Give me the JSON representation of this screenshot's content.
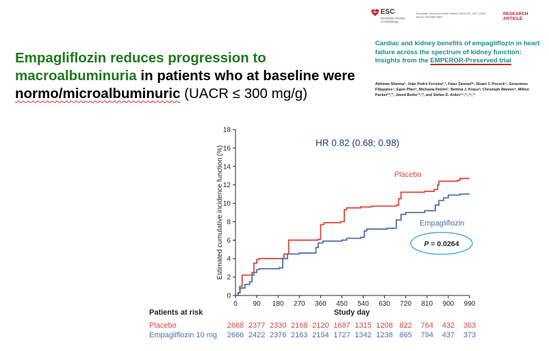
{
  "headline": {
    "part1": "Empagliflozin reduces progression to",
    "part2": "macroalbuminuria",
    "part3": " in patients who at baseline were",
    "part4": "normo/microalbuminuric",
    "part5": " (UACR ≤ 300 mg/g)"
  },
  "paper": {
    "logo_text": "ESC",
    "logo_sub": "European Society of Cardiology",
    "journal_line1": "European Journal of Heart Failure (2023) 25, 1337–1348",
    "journal_line2": "doi:10.1002/ejhf.2857",
    "label": "RESEARCH ARTICLE",
    "title_plain": "Cardiac and kidney benefits of empagliflozin in heart failure across the spectrum of kidney function: Insights from the ",
    "title_underlined": "EMPEROR-Preserved trial",
    "authors": "Abhinav Sharma¹, João Pedro Ferreira²,³, Faiez Zannad³ᵃ, Stuart J. Pocock⁴, Gerasimos Filippatos⁵, Egon Pfarr⁶, Michaela Petrini⁷, Bettina J. Kraus⁸, Christoph Wanner⁹, Milton Packer¹⁰,¹¹, Javed Butler¹²,¹³, and Stefan D. Anker¹⁴,¹⁵,¹⁶,¹⁷"
  },
  "colors": {
    "placebo": "#d9483b",
    "empagliflozin": "#4f6fa8",
    "headline_green": "#1e7a1e",
    "paper_title": "#1b8a8c",
    "pvalue_ring": "#2aa3d4",
    "hr_text": "#1f3f77"
  },
  "chart_data": {
    "type": "line",
    "step": true,
    "ylabel": "Estimated cumulative incidence function (%)",
    "xlabel": "Study day",
    "x_ticks": [
      0,
      90,
      180,
      270,
      360,
      450,
      540,
      630,
      720,
      810,
      900,
      990
    ],
    "y_ticks": [
      0,
      2,
      4,
      6,
      8,
      10,
      12,
      14,
      16,
      18
    ],
    "xlim": [
      0,
      990
    ],
    "ylim": [
      0,
      18
    ],
    "annotations": {
      "hr": "HR 0.82 (0.68; 0.98)",
      "p_label": "P",
      "p_value": " = 0.0264",
      "placebo_label": "Placebo",
      "empa_label": "Empagliflozin"
    },
    "series": [
      {
        "name": "Placebo",
        "points": [
          [
            0,
            0
          ],
          [
            10,
            0.3
          ],
          [
            18,
            1.0
          ],
          [
            28,
            2.2
          ],
          [
            70,
            2.2
          ],
          [
            78,
            3.5
          ],
          [
            90,
            3.9
          ],
          [
            100,
            4.0
          ],
          [
            200,
            4.0
          ],
          [
            205,
            4.5
          ],
          [
            225,
            6.0
          ],
          [
            350,
            6.1
          ],
          [
            360,
            7.7
          ],
          [
            375,
            7.9
          ],
          [
            445,
            8.0
          ],
          [
            460,
            9.3
          ],
          [
            470,
            9.5
          ],
          [
            530,
            9.6
          ],
          [
            555,
            9.6
          ],
          [
            575,
            9.7
          ],
          [
            680,
            9.8
          ],
          [
            690,
            10.5
          ],
          [
            700,
            11.2
          ],
          [
            800,
            11.3
          ],
          [
            840,
            11.5
          ],
          [
            855,
            12.0
          ],
          [
            860,
            12.4
          ],
          [
            940,
            12.5
          ],
          [
            950,
            12.7
          ],
          [
            990,
            12.7
          ]
        ]
      },
      {
        "name": "Empagliflozin",
        "points": [
          [
            0,
            0
          ],
          [
            12,
            0.3
          ],
          [
            20,
            0.8
          ],
          [
            40,
            1.2
          ],
          [
            60,
            1.5
          ],
          [
            70,
            2.5
          ],
          [
            90,
            2.8
          ],
          [
            100,
            2.9
          ],
          [
            185,
            3.0
          ],
          [
            200,
            4.0
          ],
          [
            220,
            4.5
          ],
          [
            270,
            4.6
          ],
          [
            340,
            5.2
          ],
          [
            350,
            5.7
          ],
          [
            370,
            5.9
          ],
          [
            450,
            6.0
          ],
          [
            470,
            6.2
          ],
          [
            530,
            6.3
          ],
          [
            545,
            7.0
          ],
          [
            555,
            7.2
          ],
          [
            640,
            7.3
          ],
          [
            680,
            8.2
          ],
          [
            700,
            8.8
          ],
          [
            720,
            9.0
          ],
          [
            800,
            9.2
          ],
          [
            845,
            9.8
          ],
          [
            860,
            10.3
          ],
          [
            880,
            10.6
          ],
          [
            900,
            10.9
          ],
          [
            950,
            11.0
          ],
          [
            990,
            11.0
          ]
        ]
      }
    ],
    "risk_table": {
      "header": "Patients at risk",
      "rows": [
        {
          "name": "Placebo",
          "values": [
            "2668",
            "2377",
            "2330",
            "2168",
            "2120",
            "1687",
            "1315",
            "1208",
            "822",
            "764",
            "432",
            "363"
          ]
        },
        {
          "name": "Empagliflozin 10 mg",
          "values": [
            "2666",
            "2422",
            "2376",
            "2163",
            "2154",
            "1727",
            "1342",
            "1238",
            "865",
            "794",
            "437",
            "373"
          ]
        }
      ]
    }
  }
}
